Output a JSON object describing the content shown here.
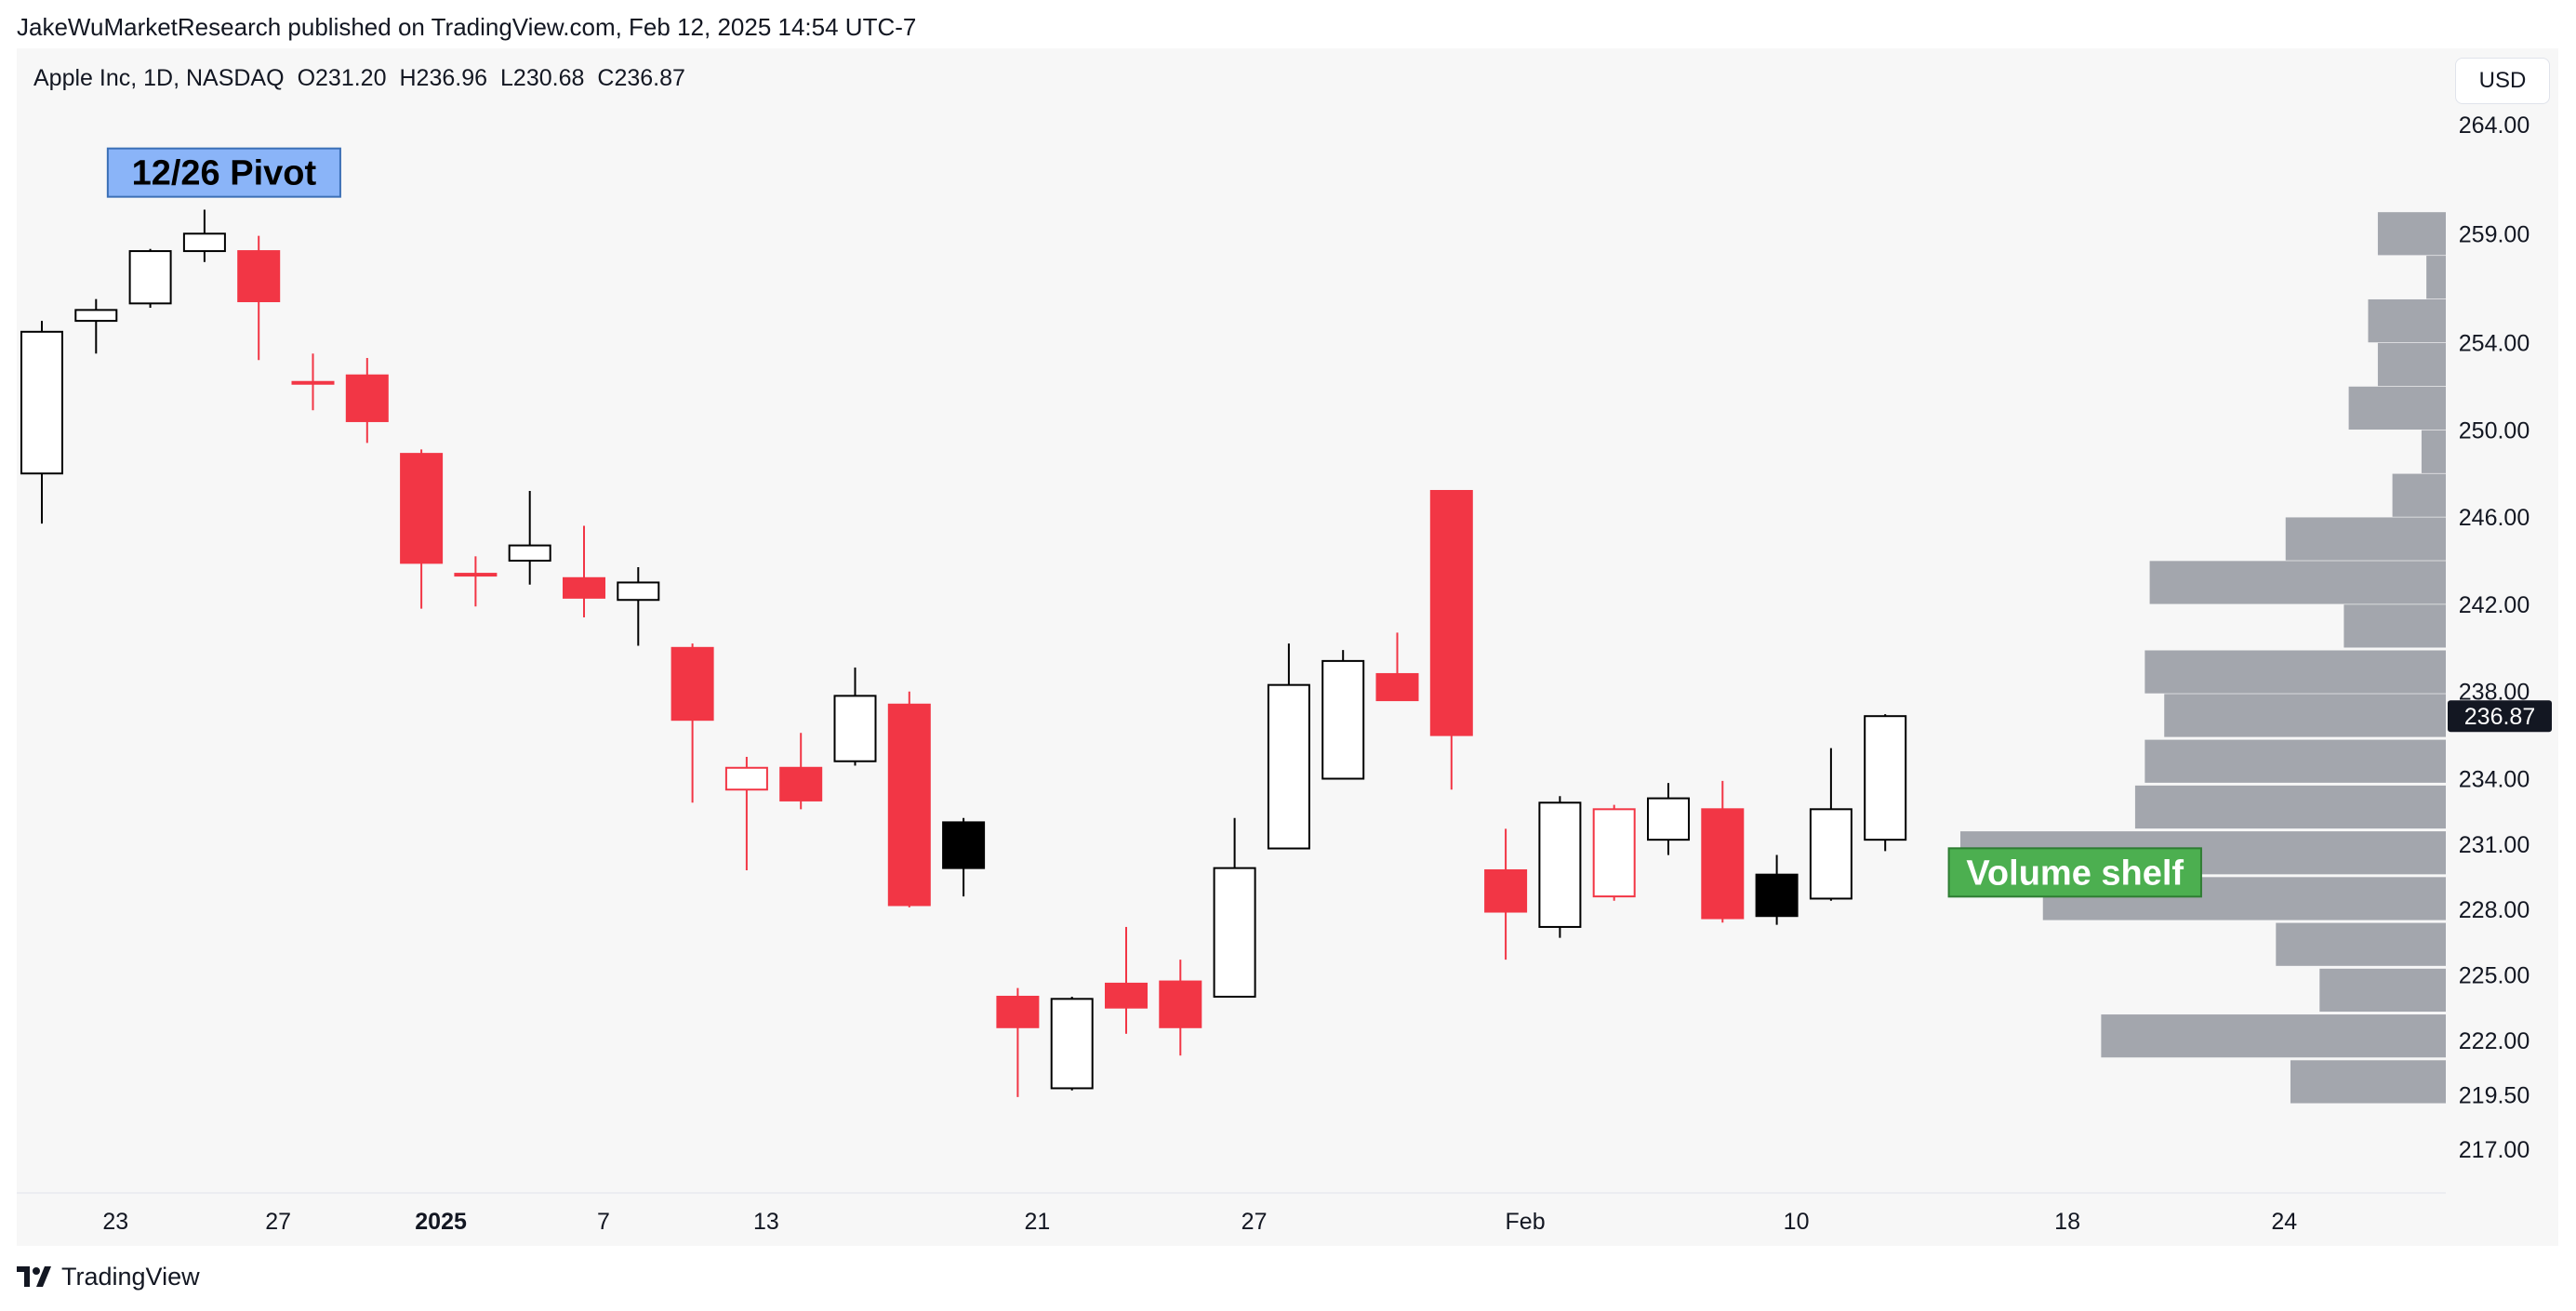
{
  "publish_line": "JakeWuMarketResearch published on TradingView.com, Feb 12, 2025 14:54 UTC-7",
  "symbol": {
    "name": "Apple Inc, 1D, NASDAQ",
    "open": "O231.20",
    "high": "H236.96",
    "low": "L230.68",
    "close": "C236.87"
  },
  "currency_button": "USD",
  "brand": "TradingView",
  "colors": {
    "up": "#000000",
    "down": "#f23645",
    "volume": "#a3a6ad",
    "background": "#f7f7f7"
  },
  "chart_data": {
    "type": "candlestick",
    "ylim": [
      215,
      267.5
    ],
    "price_ticks": [
      "264.00",
      "259.00",
      "254.00",
      "250.00",
      "246.00",
      "242.00",
      "238.00",
      "234.00",
      "231.00",
      "228.00",
      "225.00",
      "222.00",
      "219.50",
      "217.00"
    ],
    "price_tick_values": [
      264,
      259,
      254,
      250,
      246,
      242,
      238,
      234,
      231,
      228,
      225,
      222,
      219.5,
      217
    ],
    "current_price": "236.87",
    "current_price_value": 236.87,
    "x_ticks": [
      {
        "label": "23",
        "bar": 1.36,
        "bold": false
      },
      {
        "label": "27",
        "bar": 4.36,
        "bold": false
      },
      {
        "label": "2025",
        "bar": 7.36,
        "bold": true
      },
      {
        "label": "7",
        "bar": 10.36,
        "bold": false
      },
      {
        "label": "13",
        "bar": 13.36,
        "bold": false
      },
      {
        "label": "21",
        "bar": 18.36,
        "bold": false
      },
      {
        "label": "27",
        "bar": 22.36,
        "bold": false
      },
      {
        "label": "Feb",
        "bar": 27.36,
        "bold": false
      },
      {
        "label": "10",
        "bar": 32.36,
        "bold": false
      },
      {
        "label": "18",
        "bar": 37.36,
        "bold": false
      },
      {
        "label": "24",
        "bar": 41.36,
        "bold": false
      }
    ],
    "candles": [
      {
        "o": 248.0,
        "h": 255.0,
        "l": 245.7,
        "c": 254.5
      },
      {
        "o": 255.0,
        "h": 256.0,
        "l": 253.5,
        "c": 255.5
      },
      {
        "o": 255.8,
        "h": 258.3,
        "l": 255.6,
        "c": 258.2
      },
      {
        "o": 258.2,
        "h": 260.1,
        "l": 257.7,
        "c": 259.0
      },
      {
        "o": 258.2,
        "h": 258.9,
        "l": 253.2,
        "c": 255.9
      },
      {
        "o": 252.2,
        "h": 253.5,
        "l": 250.9,
        "c": 252.2
      },
      {
        "o": 252.5,
        "h": 253.3,
        "l": 249.4,
        "c": 250.4
      },
      {
        "o": 248.9,
        "h": 249.1,
        "l": 241.8,
        "c": 243.9
      },
      {
        "o": 243.4,
        "h": 244.2,
        "l": 241.9,
        "c": 243.4
      },
      {
        "o": 244.0,
        "h": 247.2,
        "l": 242.9,
        "c": 244.7
      },
      {
        "o": 243.2,
        "h": 245.6,
        "l": 241.4,
        "c": 242.3
      },
      {
        "o": 242.2,
        "h": 243.7,
        "l": 240.1,
        "c": 243.0
      },
      {
        "o": 240.0,
        "h": 240.2,
        "l": 232.9,
        "c": 236.7
      },
      {
        "o": 233.5,
        "h": 235.0,
        "l": 229.8,
        "c": 234.5
      },
      {
        "o": 234.5,
        "h": 236.1,
        "l": 232.6,
        "c": 233.0
      },
      {
        "o": 234.8,
        "h": 239.1,
        "l": 234.6,
        "c": 237.8
      },
      {
        "o": 237.4,
        "h": 238.0,
        "l": 228.1,
        "c": 228.2
      },
      {
        "o": 232.0,
        "h": 232.2,
        "l": 228.6,
        "c": 229.9
      },
      {
        "o": 224.0,
        "h": 224.4,
        "l": 219.4,
        "c": 222.6
      },
      {
        "o": 219.8,
        "h": 224.0,
        "l": 219.7,
        "c": 223.9
      },
      {
        "o": 224.6,
        "h": 227.2,
        "l": 222.3,
        "c": 223.5
      },
      {
        "o": 224.7,
        "h": 225.7,
        "l": 221.3,
        "c": 222.6
      },
      {
        "o": 224.0,
        "h": 232.2,
        "l": 224.0,
        "c": 229.9
      },
      {
        "o": 230.8,
        "h": 240.2,
        "l": 230.8,
        "c": 238.3
      },
      {
        "o": 234.0,
        "h": 239.9,
        "l": 234.0,
        "c": 239.4
      },
      {
        "o": 238.8,
        "h": 240.7,
        "l": 237.7,
        "c": 237.6
      },
      {
        "o": 247.2,
        "h": 247.2,
        "l": 233.5,
        "c": 236.0
      },
      {
        "o": 229.8,
        "h": 231.7,
        "l": 225.7,
        "c": 227.9
      },
      {
        "o": 227.2,
        "h": 233.2,
        "l": 226.7,
        "c": 232.9
      },
      {
        "o": 232.6,
        "h": 232.8,
        "l": 228.4,
        "c": 228.6
      },
      {
        "o": 231.2,
        "h": 233.8,
        "l": 230.5,
        "c": 233.1
      },
      {
        "o": 232.6,
        "h": 233.9,
        "l": 227.4,
        "c": 227.6
      },
      {
        "o": 227.7,
        "h": 230.5,
        "l": 227.3,
        "c": 229.6
      },
      {
        "o": 228.5,
        "h": 235.4,
        "l": 228.4,
        "c": 232.6
      },
      {
        "o": 231.2,
        "h": 236.96,
        "l": 230.68,
        "c": 236.87
      }
    ],
    "candle_styles": [
      "hollow",
      "hollow",
      "hollow",
      "hollow",
      "red",
      "red",
      "red",
      "red",
      "red",
      "hollow",
      "red",
      "hollow",
      "red",
      "red-hollow",
      "red",
      "hollow",
      "red",
      "black",
      "red",
      "hollow",
      "red",
      "red",
      "hollow",
      "hollow",
      "hollow",
      "red",
      "red",
      "red",
      "hollow",
      "red-hollow",
      "hollow",
      "red",
      "black",
      "hollow",
      "hollow"
    ],
    "volume_profile": [
      {
        "price": 259.0,
        "volume": 0.14
      },
      {
        "price": 257.0,
        "volume": 0.04
      },
      {
        "price": 255.0,
        "volume": 0.16
      },
      {
        "price": 253.0,
        "volume": 0.14
      },
      {
        "price": 251.0,
        "volume": 0.2
      },
      {
        "price": 249.0,
        "volume": 0.05
      },
      {
        "price": 247.0,
        "volume": 0.11
      },
      {
        "price": 245.0,
        "volume": 0.33
      },
      {
        "price": 243.0,
        "volume": 0.61
      },
      {
        "price": 241.0,
        "volume": 0.21
      },
      {
        "price": 238.9,
        "volume": 0.62
      },
      {
        "price": 236.9,
        "volume": 0.58
      },
      {
        "price": 234.8,
        "volume": 0.62
      },
      {
        "price": 232.7,
        "volume": 0.64
      },
      {
        "price": 230.6,
        "volume": 1.0
      },
      {
        "price": 228.5,
        "volume": 0.83
      },
      {
        "price": 226.4,
        "volume": 0.35
      },
      {
        "price": 224.3,
        "volume": 0.26
      },
      {
        "price": 222.2,
        "volume": 0.71
      },
      {
        "price": 220.1,
        "volume": 0.32
      }
    ],
    "annotations": [
      {
        "text": "12/26 Pivot",
        "bar": 3.36,
        "price": 261.8,
        "bg": "#8ab4f8",
        "border": "#3b6fb6",
        "color": "#000000"
      },
      {
        "text": "Volume shelf",
        "bar": 37.5,
        "price": 229.7,
        "bg": "#4caf50",
        "border": "#2e7d32",
        "color": "#ffffff"
      }
    ]
  }
}
